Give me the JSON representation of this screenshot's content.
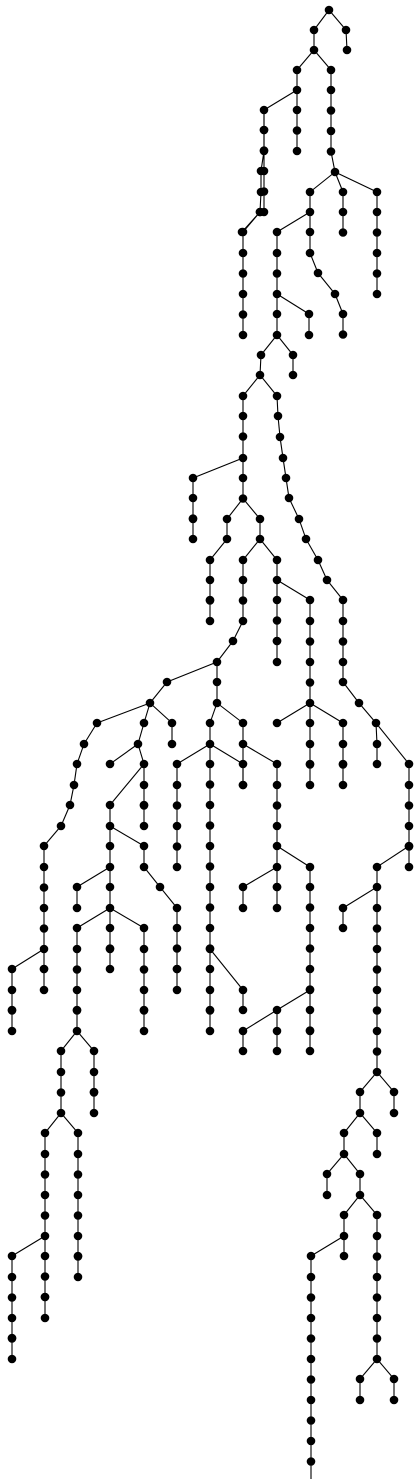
{
  "diagram": {
    "type": "tree",
    "background": "#ffffff",
    "node_color": "#000000",
    "edge_color": "#000000"
  }
}
